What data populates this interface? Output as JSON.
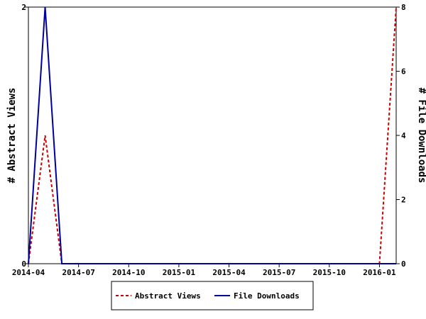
{
  "chart_data": {
    "type": "line",
    "x": [
      "2014-04",
      "2014-05",
      "2014-06",
      "2014-07",
      "2014-08",
      "2014-09",
      "2014-10",
      "2014-11",
      "2014-12",
      "2015-01",
      "2015-02",
      "2015-03",
      "2015-04",
      "2015-05",
      "2015-06",
      "2015-07",
      "2015-08",
      "2015-09",
      "2015-10",
      "2015-11",
      "2015-12",
      "2016-01",
      "2016-02"
    ],
    "x_tick_labels": [
      "2014-04",
      "2014-07",
      "2014-10",
      "2015-01",
      "2015-04",
      "2015-07",
      "2015-10",
      "2016-01"
    ],
    "series": [
      {
        "name": "Abstract Views",
        "axis": "left",
        "color": "#cc0000",
        "style": "dashed",
        "values": [
          0,
          1,
          0,
          0,
          0,
          0,
          0,
          0,
          0,
          0,
          0,
          0,
          0,
          0,
          0,
          0,
          0,
          0,
          0,
          0,
          0,
          0,
          2
        ]
      },
      {
        "name": "File Downloads",
        "axis": "right",
        "color": "#000099",
        "style": "solid",
        "values": [
          0,
          8,
          0,
          0,
          0,
          0,
          0,
          0,
          0,
          0,
          0,
          0,
          0,
          0,
          0,
          0,
          0,
          0,
          0,
          0,
          0,
          0,
          0
        ]
      }
    ],
    "ylabel": "# Abstract Views",
    "ylabel_right": "# File Downloads",
    "ylim": [
      0,
      2
    ],
    "ylim_right": [
      0,
      8
    ],
    "y_ticks": [
      "0",
      "2"
    ],
    "y_ticks_right": [
      "0",
      "2",
      "4",
      "6",
      "8"
    ],
    "grid": false,
    "legend_position": "bottom-center"
  }
}
